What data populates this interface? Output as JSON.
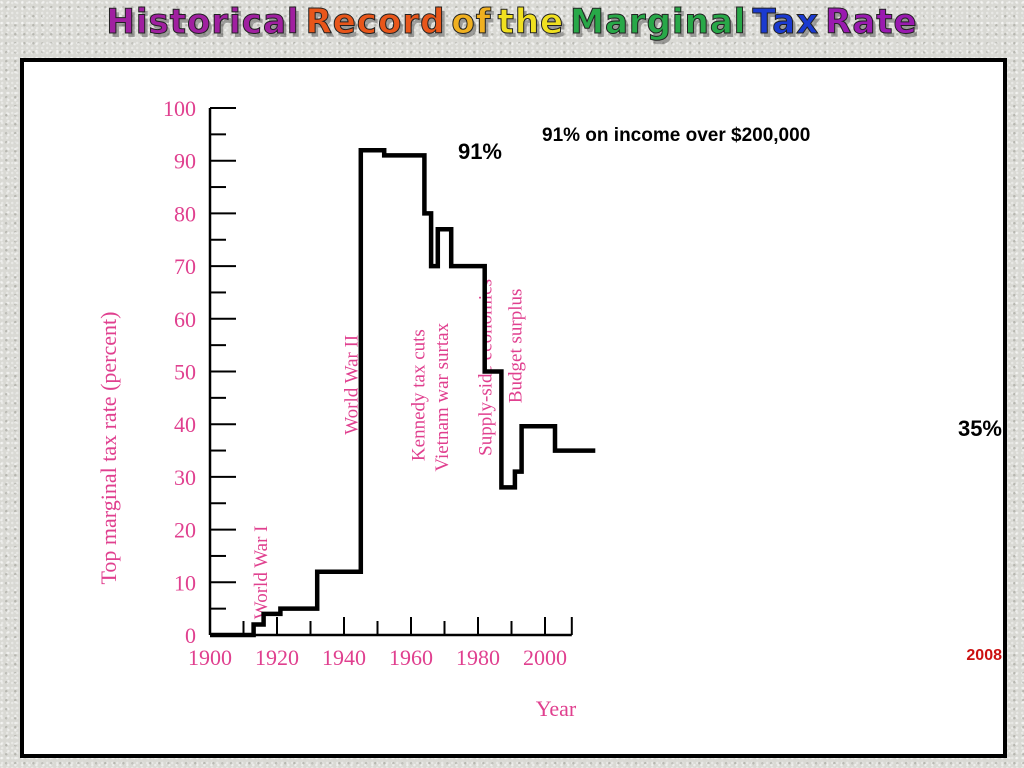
{
  "title": {
    "words": [
      {
        "text": "Historical",
        "color": "#a020a0"
      },
      {
        "text": "Record",
        "color": "#e8561a"
      },
      {
        "text": "of",
        "color": "#f0b020"
      },
      {
        "text": "the",
        "color": "#f0e020"
      },
      {
        "text": "Marginal",
        "color": "#28a848"
      },
      {
        "text": "Tax",
        "color": "#1a3ad0"
      },
      {
        "text": "Rate",
        "color": "#9a1ab0"
      }
    ]
  },
  "chart_data": {
    "type": "line",
    "title": "Historical Record of the Marginal Tax Rate",
    "xlabel": "Year",
    "ylabel": "Top marginal tax rate (percent)",
    "xlim": [
      1900,
      2008
    ],
    "ylim": [
      0,
      100
    ],
    "x_ticks": [
      1900,
      1920,
      1940,
      1960,
      1980,
      2000
    ],
    "y_ticks": [
      0,
      10,
      20,
      30,
      40,
      50,
      60,
      70,
      80,
      90,
      100
    ],
    "step": true,
    "grid": false,
    "series": [
      {
        "points": [
          [
            1900,
            0
          ],
          [
            1913,
            0
          ],
          [
            1913,
            2
          ],
          [
            1916,
            2
          ],
          [
            1916,
            4
          ],
          [
            1921,
            4
          ],
          [
            1921,
            5
          ],
          [
            1932,
            5
          ],
          [
            1932,
            12
          ],
          [
            1945,
            12
          ],
          [
            1945,
            92
          ],
          [
            1952,
            92
          ],
          [
            1952,
            91
          ],
          [
            1964,
            91
          ],
          [
            1964,
            80
          ],
          [
            1966,
            80
          ],
          [
            1966,
            70
          ],
          [
            1968,
            70
          ],
          [
            1968,
            77
          ],
          [
            1972,
            77
          ],
          [
            1972,
            70
          ],
          [
            1982,
            70
          ],
          [
            1982,
            50
          ],
          [
            1987,
            50
          ],
          [
            1987,
            28
          ],
          [
            1991,
            28
          ],
          [
            1991,
            31
          ],
          [
            1993,
            31
          ],
          [
            1993,
            39.6
          ],
          [
            2003,
            39.6
          ],
          [
            2003,
            35
          ],
          [
            2015,
            35
          ]
        ],
        "color": "#000000"
      }
    ],
    "events": [
      {
        "label": "World War I",
        "x": 1917,
        "y": 3
      },
      {
        "label": "World War II",
        "x": 1944,
        "y": 38
      },
      {
        "label": "Kennedy tax cuts",
        "x": 1964,
        "y": 33
      },
      {
        "label": "Vietnam war surtax",
        "x": 1971,
        "y": 31
      },
      {
        "label": "Supply-side economics",
        "x": 1984,
        "y": 34
      },
      {
        "label": "Budget surplus",
        "x": 1993,
        "y": 44
      }
    ],
    "annotations": {
      "peak_value": "91%",
      "peak_note": "91% on income over $200,000",
      "current_value": "35%",
      "current_year": "2008"
    }
  }
}
